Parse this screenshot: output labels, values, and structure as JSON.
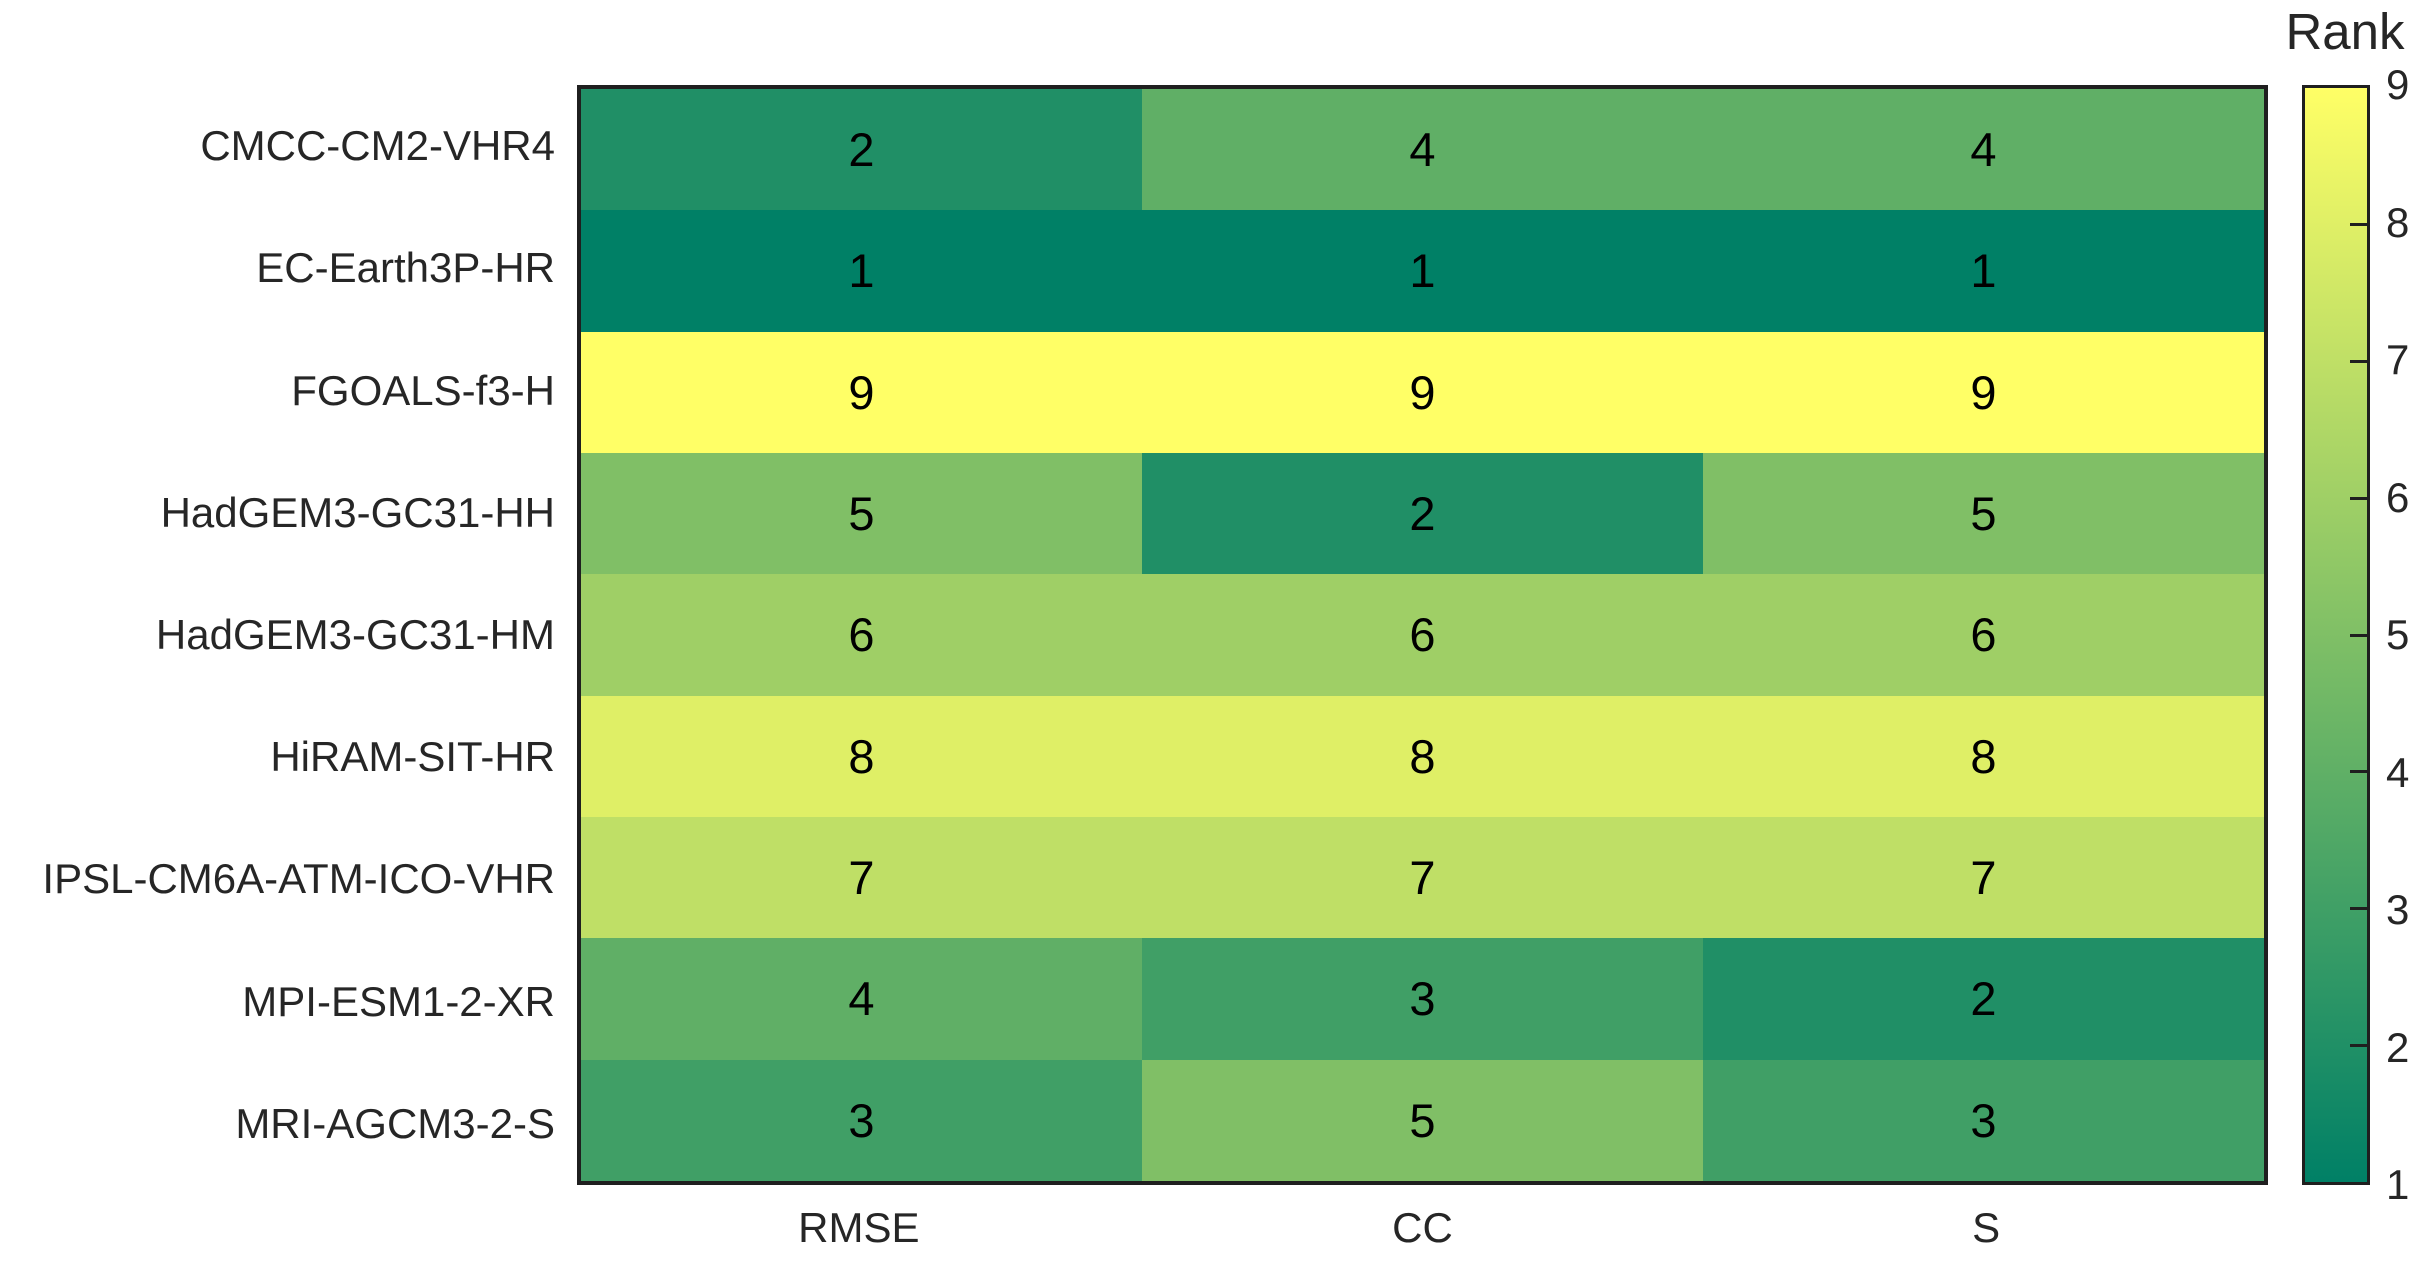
{
  "figure": {
    "background": "#ffffff",
    "axis_border_color": "#1f1f1f",
    "label_color": "#262626",
    "cell_text_color": "#000000"
  },
  "chart_data": {
    "type": "heatmap",
    "title": "",
    "columns": [
      "RMSE",
      "CC",
      "S"
    ],
    "rows": [
      "CMCC-CM2-VHR4",
      "EC-Earth3P-HR",
      "FGOALS-f3-H",
      "HadGEM3-GC31-HH",
      "HadGEM3-GC31-HM",
      "HiRAM-SIT-HR",
      "IPSL-CM6A-ATM-ICO-VHR",
      "MPI-ESM1-2-XR",
      "MRI-AGCM3-2-S"
    ],
    "values": [
      [
        2,
        4,
        4
      ],
      [
        1,
        1,
        1
      ],
      [
        9,
        9,
        9
      ],
      [
        5,
        2,
        5
      ],
      [
        6,
        6,
        6
      ],
      [
        8,
        8,
        8
      ],
      [
        7,
        7,
        7
      ],
      [
        4,
        3,
        2
      ],
      [
        3,
        5,
        3
      ]
    ],
    "value_range": [
      1,
      9
    ],
    "grid": false,
    "legend_position": "right",
    "colorbar": {
      "label": "Rank",
      "ticks": [
        1,
        2,
        3,
        4,
        5,
        6,
        7,
        8,
        9
      ],
      "ticks_with_marks": [
        2,
        3,
        4,
        5,
        6,
        7,
        8
      ],
      "low_color": "#008066",
      "high_color": "#ffff66"
    },
    "colormap": {
      "name": "summer",
      "rank_colors": [
        "#008066",
        "#208f66",
        "#409f66",
        "#60af66",
        "#80bf66",
        "#9fcf66",
        "#bfdf66",
        "#dfef66",
        "#ffff66"
      ]
    }
  }
}
